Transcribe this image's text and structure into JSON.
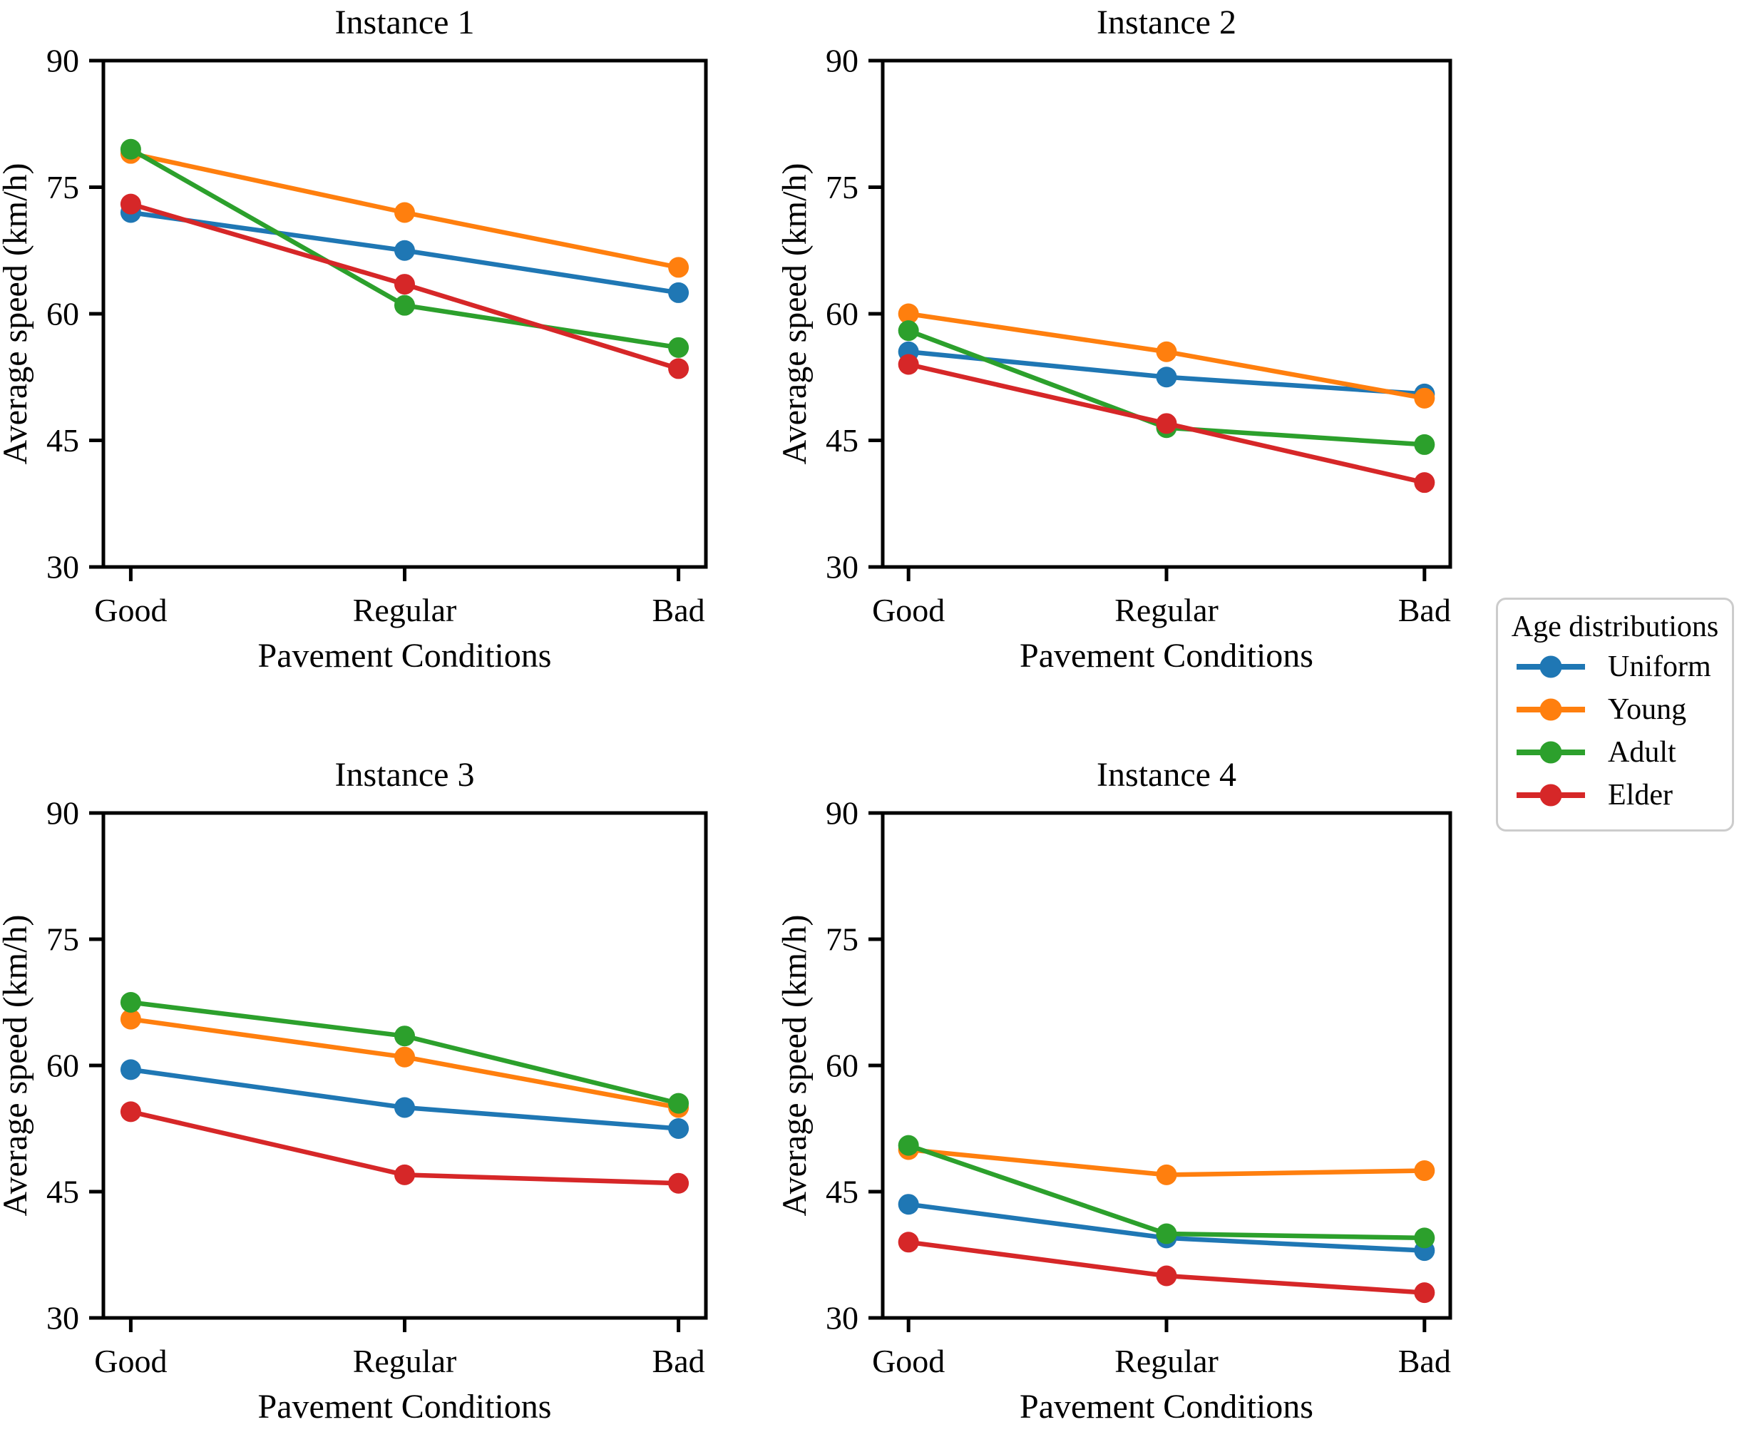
{
  "figure": {
    "background": "#ffffff"
  },
  "colors": {
    "uniform": "#1f77b4",
    "young": "#ff7f0e",
    "adult": "#2ca02c",
    "elder": "#d62728",
    "axis": "#000000",
    "legend_border": "#cccccc"
  },
  "legend": {
    "title": "Age distributions",
    "position": "center right",
    "entries": [
      {
        "label": "Uniform",
        "color": "#1f77b4"
      },
      {
        "label": "Young",
        "color": "#ff7f0e"
      },
      {
        "label": "Adult",
        "color": "#2ca02c"
      },
      {
        "label": "Elder",
        "color": "#d62728"
      }
    ]
  },
  "chart_data": [
    {
      "type": "line",
      "title": "Instance 1",
      "xlabel": "Pavement Conditions",
      "ylabel": "Average speed (km/h)",
      "categories": [
        "Good",
        "Regular",
        "Bad"
      ],
      "ylim": [
        30,
        90
      ],
      "yticks": [
        30,
        45,
        60,
        75,
        90
      ],
      "grid": false,
      "series": [
        {
          "name": "Uniform",
          "color": "#1f77b4",
          "values": [
            72,
            67.5,
            62.5
          ]
        },
        {
          "name": "Young",
          "color": "#ff7f0e",
          "values": [
            79,
            72,
            65.5
          ]
        },
        {
          "name": "Adult",
          "color": "#2ca02c",
          "values": [
            79.5,
            61,
            56
          ]
        },
        {
          "name": "Elder",
          "color": "#d62728",
          "values": [
            73,
            63.5,
            53.5
          ]
        }
      ]
    },
    {
      "type": "line",
      "title": "Instance 2",
      "xlabel": "Pavement Conditions",
      "ylabel": "Average speed (km/h)",
      "categories": [
        "Good",
        "Regular",
        "Bad"
      ],
      "ylim": [
        30,
        90
      ],
      "yticks": [
        30,
        45,
        60,
        75,
        90
      ],
      "grid": false,
      "series": [
        {
          "name": "Uniform",
          "color": "#1f77b4",
          "values": [
            55.5,
            52.5,
            50.5
          ]
        },
        {
          "name": "Young",
          "color": "#ff7f0e",
          "values": [
            60,
            55.5,
            50
          ]
        },
        {
          "name": "Adult",
          "color": "#2ca02c",
          "values": [
            58,
            46.5,
            44.5
          ]
        },
        {
          "name": "Elder",
          "color": "#d62728",
          "values": [
            54,
            47,
            40
          ]
        }
      ]
    },
    {
      "type": "line",
      "title": "Instance 3",
      "xlabel": "Pavement Conditions",
      "ylabel": "Average speed (km/h)",
      "categories": [
        "Good",
        "Regular",
        "Bad"
      ],
      "ylim": [
        30,
        90
      ],
      "yticks": [
        30,
        45,
        60,
        75,
        90
      ],
      "grid": false,
      "series": [
        {
          "name": "Uniform",
          "color": "#1f77b4",
          "values": [
            59.5,
            55,
            52.5
          ]
        },
        {
          "name": "Young",
          "color": "#ff7f0e",
          "values": [
            65.5,
            61,
            55
          ]
        },
        {
          "name": "Adult",
          "color": "#2ca02c",
          "values": [
            67.5,
            63.5,
            55.5
          ]
        },
        {
          "name": "Elder",
          "color": "#d62728",
          "values": [
            54.5,
            47,
            46
          ]
        }
      ]
    },
    {
      "type": "line",
      "title": "Instance 4",
      "xlabel": "Pavement Conditions",
      "ylabel": "Average speed (km/h)",
      "categories": [
        "Good",
        "Regular",
        "Bad"
      ],
      "ylim": [
        30,
        90
      ],
      "yticks": [
        30,
        45,
        60,
        75,
        90
      ],
      "grid": false,
      "series": [
        {
          "name": "Uniform",
          "color": "#1f77b4",
          "values": [
            43.5,
            39.5,
            38
          ]
        },
        {
          "name": "Young",
          "color": "#ff7f0e",
          "values": [
            50,
            47,
            47.5
          ]
        },
        {
          "name": "Adult",
          "color": "#2ca02c",
          "values": [
            50.5,
            40,
            39.5
          ]
        },
        {
          "name": "Elder",
          "color": "#d62728",
          "values": [
            39,
            35,
            33
          ]
        }
      ]
    }
  ]
}
